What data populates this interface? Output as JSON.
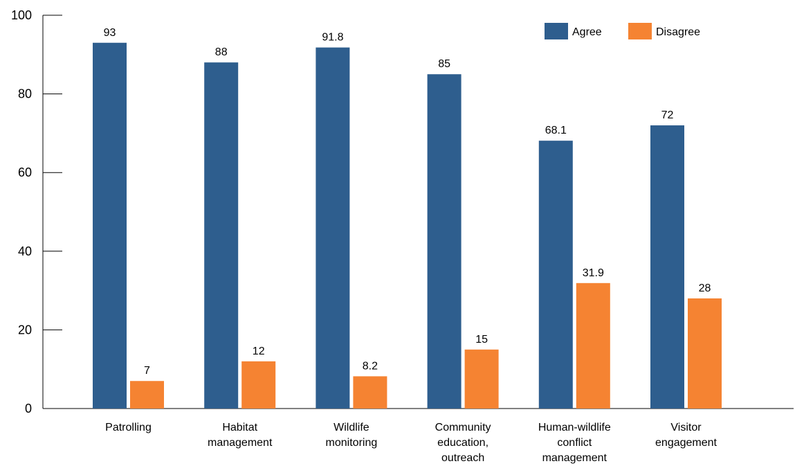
{
  "chart_data": {
    "type": "bar",
    "title": "",
    "xlabel": "",
    "ylabel": "",
    "ylim": [
      0,
      100
    ],
    "yticks": [
      0,
      20,
      40,
      60,
      80,
      100
    ],
    "grid": false,
    "legend_position": "top-right",
    "categories": [
      [
        "Patrolling"
      ],
      [
        "Habitat",
        "management"
      ],
      [
        "Wildlife",
        "monitoring"
      ],
      [
        "Community",
        "education,",
        "outreach"
      ],
      [
        "Human-wildlife",
        "conflict",
        "management"
      ],
      [
        "Visitor",
        "engagement"
      ]
    ],
    "series": [
      {
        "name": "Agree",
        "color": "#2e5e8e",
        "values": [
          93,
          88,
          91.8,
          85,
          68.1,
          72
        ]
      },
      {
        "name": "Disagree",
        "color": "#f58332",
        "values": [
          7,
          12,
          8.2,
          15,
          31.9,
          28
        ]
      }
    ]
  }
}
